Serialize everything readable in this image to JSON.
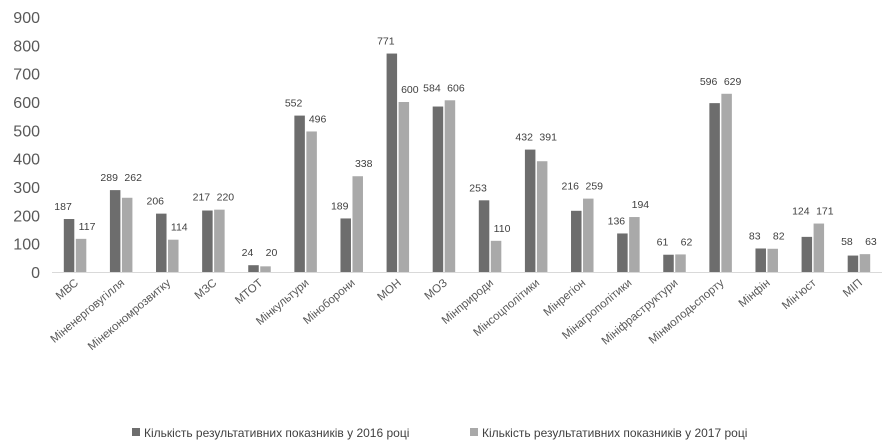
{
  "chart_data": {
    "type": "bar",
    "title": "",
    "xlabel": "",
    "ylabel": "",
    "ylim": [
      0,
      900
    ],
    "yticks": [
      0,
      100,
      200,
      300,
      400,
      500,
      600,
      700,
      800,
      900
    ],
    "grid": false,
    "legend_position": "bottom",
    "categories": [
      "МВС",
      "Міненерговугілля",
      "Мінекономрозвитку",
      "МЗС",
      "МТОТ",
      "Мінкультури",
      "Міноборони",
      "МОН",
      "МОЗ",
      "Мінприроди",
      "Мінсоцполітики",
      "Мінрегіон",
      "Мінагрополітики",
      "Мініфраструктури",
      "Мінмолодьспорту",
      "Мінфін",
      "Мін'юст",
      "МІП"
    ],
    "series": [
      {
        "name": "Кількість результативних показників  у 2016 році",
        "color": "#6d6d6d",
        "values": [
          187,
          289,
          206,
          217,
          24,
          552,
          189,
          771,
          584,
          253,
          432,
          216,
          136,
          61,
          596,
          83,
          124,
          58
        ]
      },
      {
        "name": "Кількість результативних показників у 2017 році",
        "color": "#a9a9a9",
        "values": [
          117,
          262,
          114,
          220,
          20,
          496,
          338,
          600,
          606,
          110,
          391,
          259,
          194,
          62,
          629,
          82,
          171,
          63
        ]
      }
    ]
  }
}
